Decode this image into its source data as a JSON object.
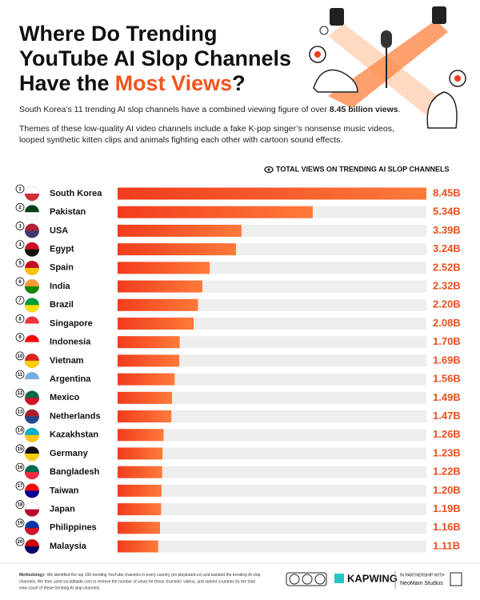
{
  "chart_data": {
    "type": "bar",
    "orientation": "horizontal",
    "title": [
      "Where Do Trending",
      "YouTube AI Slop Channels",
      "Have the"
    ],
    "title_highlight": "Most Views",
    "title_end": "?",
    "subtitle": {
      "text": "South Korea’s 11 trending AI slop channels have a combined viewing figure of over",
      "bold": "8.45 billion views",
      "end": "."
    },
    "description": [
      "Themes of these low-quality AI video channels include a fake K-pop singer’s nonsense music videos,",
      "looped synthetic kitten clips and animals fighting each other with cartoon sound effects."
    ],
    "legend_title": "TOTAL VIEWS ON TRENDING AI SLOP CHANNELS",
    "ranks": [
      1,
      2,
      3,
      4,
      5,
      6,
      7,
      8,
      9,
      10,
      11,
      12,
      13,
      14,
      15,
      16,
      17,
      18,
      19,
      20
    ],
    "categories": [
      "South Korea",
      "Pakistan",
      "USA",
      "Egypt",
      "Spain",
      "India",
      "Brazil",
      "Singapore",
      "Indonesia",
      "Vietnam",
      "Argentina",
      "Mexico",
      "Netherlands",
      "Kazakhstan",
      "Germany",
      "Bangladesh",
      "Taiwan",
      "Japan",
      "Philippines",
      "Malaysia"
    ],
    "values": [
      8.45,
      5.34,
      3.39,
      3.24,
      2.52,
      2.32,
      2.2,
      2.08,
      1.7,
      1.69,
      1.56,
      1.49,
      1.47,
      1.26,
      1.23,
      1.22,
      1.2,
      1.19,
      1.16,
      1.11
    ],
    "value_labels": [
      "8.45B",
      "5.34B",
      "3.39B",
      "3.24B",
      "2.52B",
      "2.32B",
      "2.20B",
      "2.08B",
      "1.70B",
      "1.69B",
      "1.56B",
      "1.49B",
      "1.47B",
      "1.26B",
      "1.23B",
      "1.22B",
      "1.20B",
      "1.19B",
      "1.16B",
      "1.11B"
    ],
    "color": "#f23c1c",
    "methodology": {
      "label": "Methodology:",
      "lines": [
        "We identified the top 100 trending YouTube channels in every country (on playboard.co) and isolated the trending AI slop",
        "channels. We then used socialblade.com to retrieve the number of views for these channels’ videos, and ranked countries by the total",
        "view count of these trending AI slop channels."
      ]
    },
    "brand": "KAPWING",
    "partner_label": "IN PARTNERSHIP WITH",
    "partner": "NeoMam Studios"
  }
}
